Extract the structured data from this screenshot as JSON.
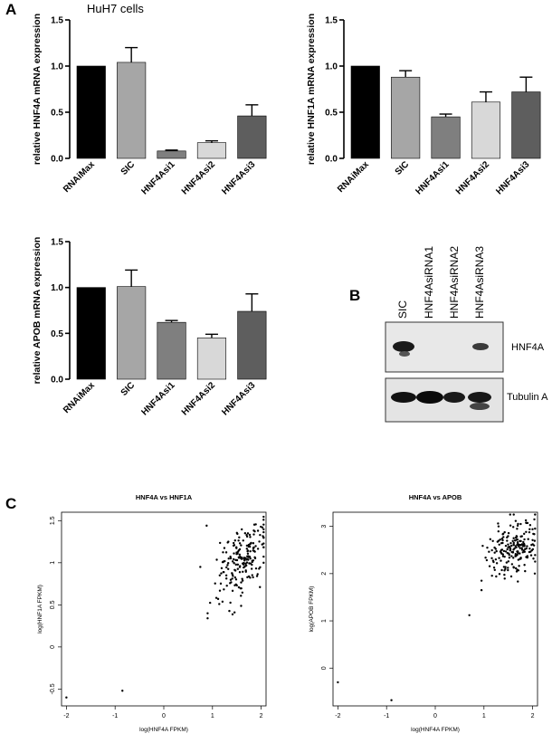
{
  "panels": {
    "a": "A",
    "b": "B",
    "c": "C"
  },
  "cell_line": "HuH7 cells",
  "chart_data": [
    {
      "id": "hnf4a",
      "type": "bar",
      "ylabel": "relative HNF4A mRNA expression",
      "categories": [
        "RNAiMax",
        "SIC",
        "HNF4Asi1",
        "HNF4Asi2",
        "HNF4Asi3"
      ],
      "values": [
        1.0,
        1.04,
        0.08,
        0.17,
        0.46
      ],
      "errors": [
        0.0,
        0.16,
        0.01,
        0.02,
        0.12
      ],
      "colors": [
        "#000000",
        "#a6a6a6",
        "#7f7f7f",
        "#d8d8d8",
        "#5e5e5e"
      ],
      "ylim": [
        0,
        1.5
      ],
      "yticks": [
        "0.0",
        "0.5",
        "1.0",
        "1.5"
      ]
    },
    {
      "id": "hnf1a",
      "type": "bar",
      "ylabel": "relative HNF1A mRNA expression",
      "categories": [
        "RNAiMax",
        "SIC",
        "HNF4Asi1",
        "HNF4Asi2",
        "HNF4Asi3"
      ],
      "values": [
        1.0,
        0.88,
        0.45,
        0.61,
        0.72
      ],
      "errors": [
        0.0,
        0.07,
        0.03,
        0.11,
        0.16
      ],
      "colors": [
        "#000000",
        "#a6a6a6",
        "#7f7f7f",
        "#d8d8d8",
        "#5e5e5e"
      ],
      "ylim": [
        0,
        1.5
      ],
      "yticks": [
        "0.0",
        "0.5",
        "1.0",
        "1.5"
      ]
    },
    {
      "id": "apob",
      "type": "bar",
      "ylabel": "relative APOB mRNA expression",
      "categories": [
        "RNAiMax",
        "SIC",
        "HNF4Asi1",
        "HNF4Asi2",
        "HNF4Asi3"
      ],
      "values": [
        1.0,
        1.01,
        0.62,
        0.45,
        0.74
      ],
      "errors": [
        0.0,
        0.18,
        0.02,
        0.04,
        0.19
      ],
      "colors": [
        "#000000",
        "#a6a6a6",
        "#7f7f7f",
        "#d8d8d8",
        "#5e5e5e"
      ],
      "ylim": [
        0,
        1.5
      ],
      "yticks": [
        "0.0",
        "0.5",
        "1.0",
        "1.5"
      ]
    },
    {
      "id": "scatter_hnf1a",
      "type": "scatter",
      "title": "HNF4A vs HNF1A",
      "xlabel": "log(HNF4A FPKM)",
      "ylabel": "log(HNF1A FPKM)",
      "xlim": [
        -2.1,
        2.1
      ],
      "ylim": [
        -0.7,
        1.6
      ],
      "xticks": [
        "-2",
        "-1",
        "0",
        "1",
        "2"
      ],
      "yticks": [
        "-0.5",
        "0",
        "0.5",
        "1",
        "1.5"
      ],
      "outliers": [
        [
          -2.0,
          -0.6
        ],
        [
          -0.85,
          -0.52
        ],
        [
          0.9,
          0.4
        ],
        [
          0.9,
          0.34
        ],
        [
          0.88,
          1.44
        ],
        [
          0.75,
          0.95
        ]
      ],
      "cluster": {
        "n": 200,
        "cx": 1.6,
        "cy": 1.02,
        "sx": 0.26,
        "sy": 0.2,
        "seed": 7
      }
    },
    {
      "id": "scatter_apob",
      "type": "scatter",
      "title": "HNF4A vs APOB",
      "xlabel": "log(HNF4A FPKM)",
      "ylabel": "log(APOB FPKM)",
      "xlim": [
        -2.1,
        2.1
      ],
      "ylim": [
        -0.8,
        3.3
      ],
      "xticks": [
        "-2",
        "-1",
        "0",
        "1",
        "2"
      ],
      "yticks": [
        "0",
        "1",
        "2",
        "3"
      ],
      "outliers": [
        [
          -2.0,
          -0.3
        ],
        [
          -0.9,
          -0.68
        ],
        [
          0.7,
          1.12
        ],
        [
          0.95,
          1.85
        ],
        [
          0.95,
          1.65
        ],
        [
          1.3,
          3.0
        ]
      ],
      "cluster": {
        "n": 200,
        "cx": 1.62,
        "cy": 2.52,
        "sx": 0.28,
        "sy": 0.28,
        "seed": 13
      }
    }
  ],
  "blot": {
    "columns": [
      "SIC",
      "HNF4AsiRNA1",
      "HNF4AsiRNA2",
      "HNF4AsiRNA3"
    ],
    "rows": [
      "HNF4A",
      "Tubulin A"
    ]
  }
}
